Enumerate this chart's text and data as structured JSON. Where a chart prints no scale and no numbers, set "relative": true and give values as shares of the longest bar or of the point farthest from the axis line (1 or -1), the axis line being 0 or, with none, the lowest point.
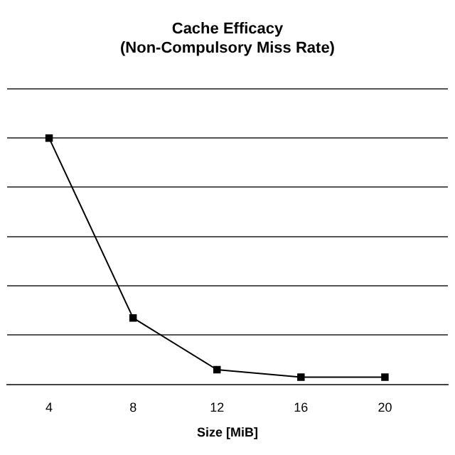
{
  "chart_data": {
    "type": "line",
    "title": "Cache Efficacy\n(Non-Compulsory Miss Rate)",
    "xlabel": "Size [MiB]",
    "x": [
      4,
      8,
      12,
      16,
      20
    ],
    "xlim": [
      2,
      23
    ],
    "xticks": [
      4,
      8,
      12,
      16,
      20
    ],
    "relative": true,
    "grid": "y",
    "legend": false,
    "marker": "square",
    "line_style": "solid",
    "series": [
      {
        "color": "#000000",
        "values": [
          1,
          0.27,
          0.06,
          0.03,
          0.03
        ]
      }
    ]
  }
}
